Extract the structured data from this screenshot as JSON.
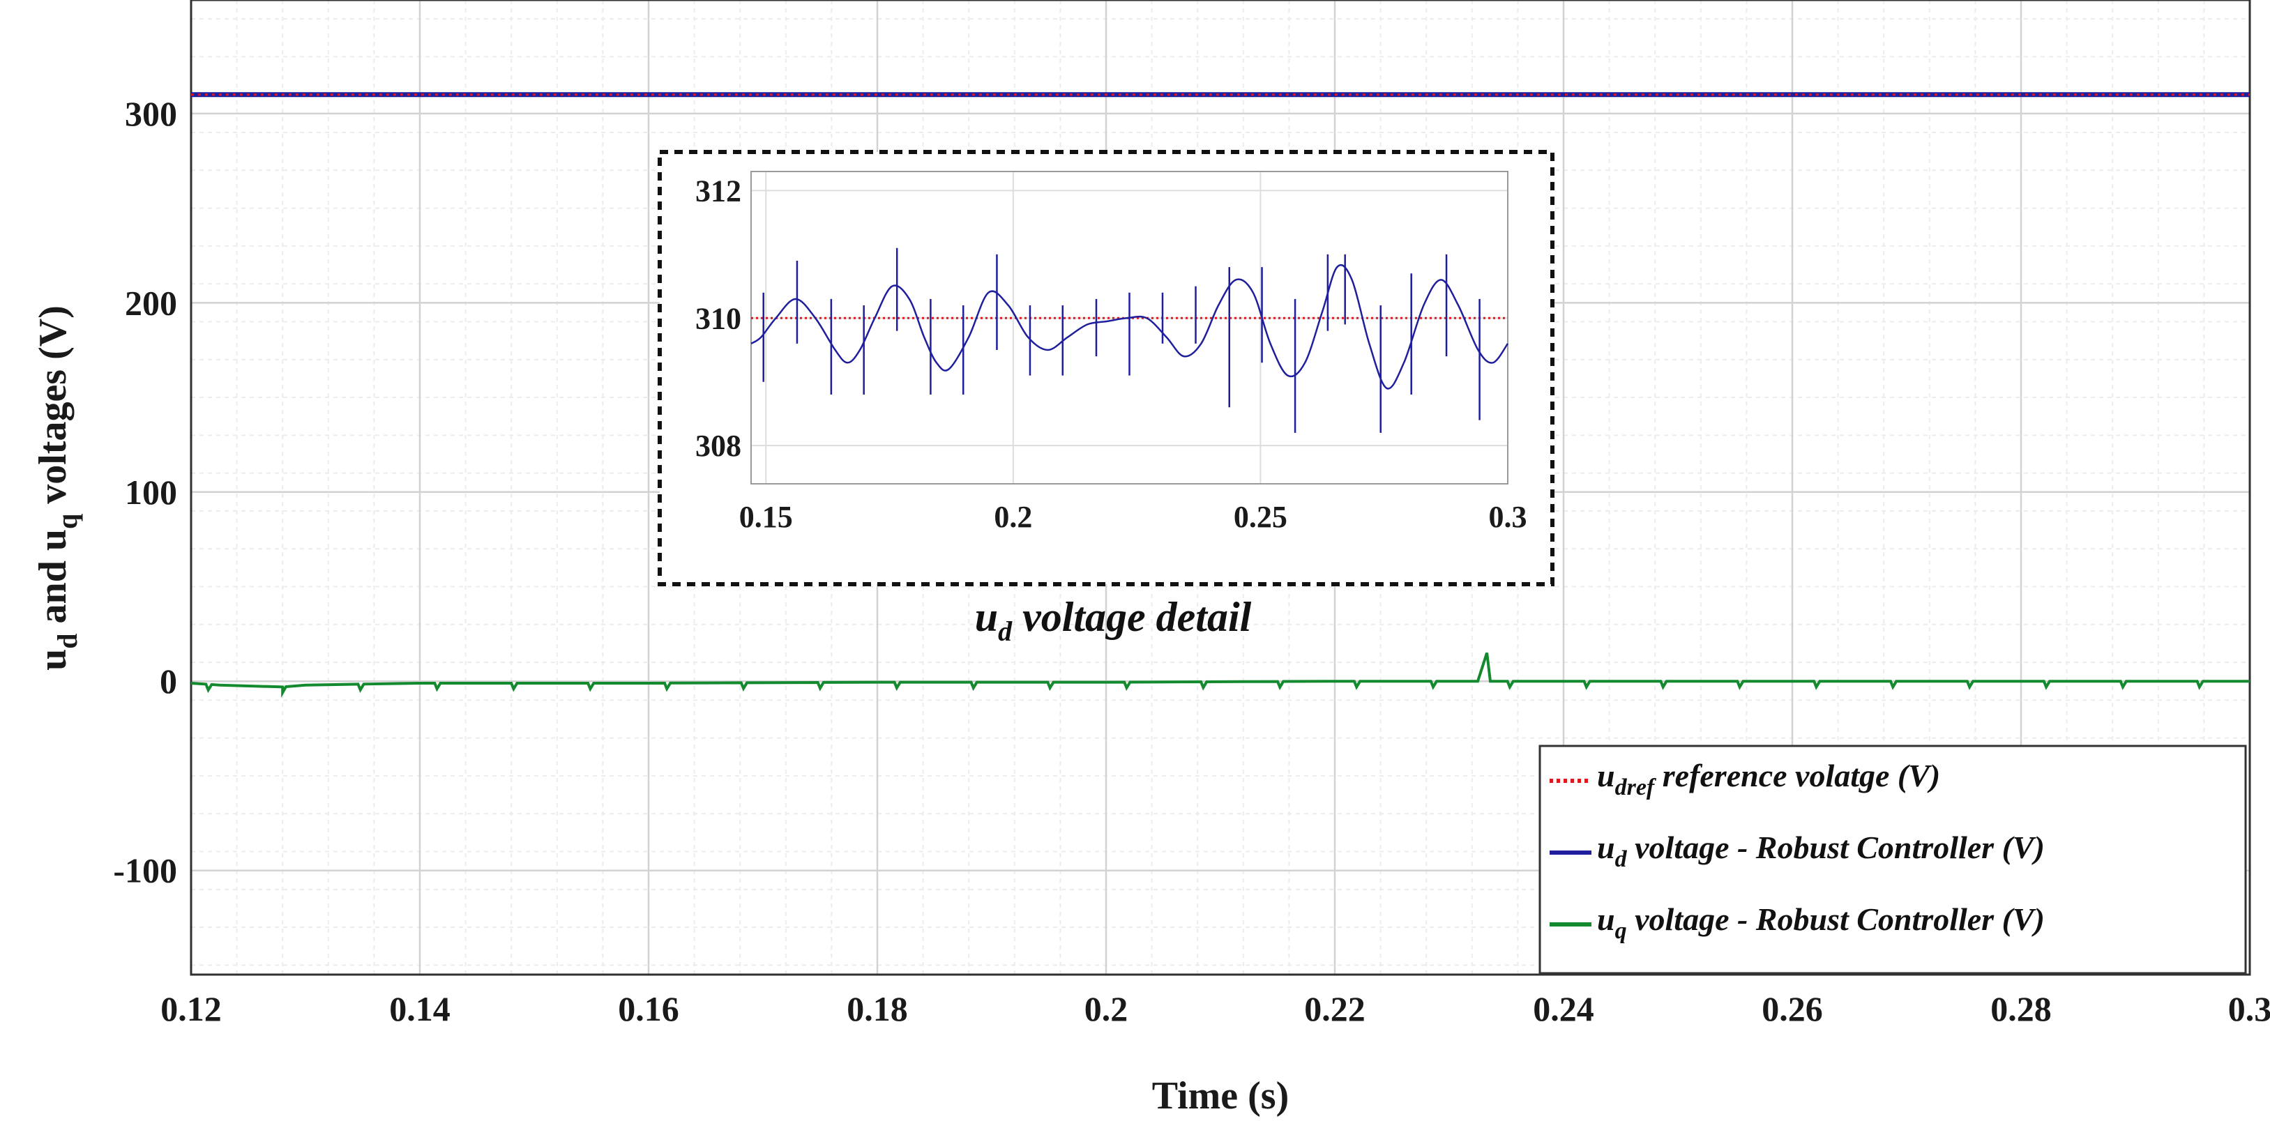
{
  "chart_data": {
    "type": "line",
    "title": "",
    "xlabel": "Time (s)",
    "ylabel": "and voltages (V)",
    "ylabel_parts": [
      "u",
      "d",
      " and u",
      "q",
      " voltages (V)"
    ],
    "xlim": [
      0.12,
      0.3
    ],
    "ylim": [
      -155,
      360
    ],
    "x_ticks": [
      0.12,
      0.14,
      0.16,
      0.18,
      0.2,
      0.22,
      0.24,
      0.26,
      0.28,
      0.3
    ],
    "x_tick_labels": [
      "0.12",
      "0.14",
      "0.16",
      "0.18",
      "0.2",
      "0.22",
      "0.24",
      "0.26",
      "0.28",
      "0.3"
    ],
    "y_ticks": [
      -100,
      0,
      100,
      200,
      300
    ],
    "y_tick_labels": [
      "-100",
      "0",
      "100",
      "200",
      "300"
    ],
    "grid": true,
    "legend_position": "bottom-right",
    "series": [
      {
        "name": "u_dref reference volatge (V)",
        "color": "#e0181b",
        "style": "dotted",
        "x": [
          0.12,
          0.3
        ],
        "values": [
          310,
          310
        ]
      },
      {
        "name": "u_d voltage - Robust Controller (V)",
        "color": "#1f1f9e",
        "style": "solid",
        "x": [
          0.12,
          0.3
        ],
        "values": [
          310,
          310
        ]
      },
      {
        "name": "u_q voltage - Robust Controller (V)",
        "color": "#138a2e",
        "style": "solid",
        "x": [
          0.12,
          0.1225,
          0.128,
          0.13,
          0.14,
          0.16,
          0.18,
          0.2,
          0.22,
          0.2325,
          0.2333,
          0.2336,
          0.24,
          0.26,
          0.28,
          0.3
        ],
        "values": [
          -1,
          -2,
          -3,
          -2,
          -1,
          -1,
          -0.5,
          -0.5,
          0,
          0,
          15,
          0,
          0,
          0,
          0,
          0
        ],
        "dip_times": [
          0.1215,
          0.128,
          0.1348,
          0.1415,
          0.1482,
          0.1549,
          0.1616,
          0.1683,
          0.175,
          0.1817,
          0.1884,
          0.1951,
          0.2018,
          0.2085,
          0.2152,
          0.2219,
          0.2286,
          0.2353,
          0.242,
          0.2487,
          0.2554,
          0.2621,
          0.2688,
          0.2755,
          0.2822,
          0.2889,
          0.2956
        ],
        "dip_depth": 3
      }
    ],
    "legend": [
      {
        "pre": "u",
        "sub": "dref",
        "post": " reference volatge (V)",
        "color": "#e0181b",
        "style": "dotted"
      },
      {
        "pre": "u",
        "sub": "d",
        "post": " voltage - Robust Controller (V)",
        "color": "#1f1f9e",
        "style": "solid"
      },
      {
        "pre": "u",
        "sub": "q",
        "post": " voltage - Robust Controller (V)",
        "color": "#138a2e",
        "style": "solid"
      }
    ],
    "inset": {
      "title_pre": "u",
      "title_sub": "d",
      "title_post": " voltage detail",
      "xlim": [
        0.147,
        0.3
      ],
      "ylim": [
        307.4,
        312.3
      ],
      "x_ticks": [
        0.15,
        0.2,
        0.25,
        0.3
      ],
      "x_tick_labels": [
        "0.15",
        "0.2",
        "0.25",
        "0.3"
      ],
      "y_ticks": [
        308,
        310,
        312
      ],
      "y_tick_labels": [
        "308",
        "310",
        "312"
      ],
      "reference": {
        "value": 310,
        "color": "#e0181b"
      },
      "ud": {
        "color": "#1f1f9e",
        "x": [
          0.147,
          0.149,
          0.152,
          0.156,
          0.16,
          0.164,
          0.1665,
          0.169,
          0.172,
          0.1755,
          0.179,
          0.182,
          0.1845,
          0.187,
          0.191,
          0.195,
          0.199,
          0.203,
          0.207,
          0.211,
          0.215,
          0.219,
          0.223,
          0.227,
          0.231,
          0.2345,
          0.238,
          0.2415,
          0.245,
          0.2485,
          0.252,
          0.2555,
          0.259,
          0.2625,
          0.2655,
          0.2685,
          0.272,
          0.2755,
          0.279,
          0.283,
          0.2865,
          0.29,
          0.294,
          0.297,
          0.3
        ],
        "values": [
          309.6,
          309.7,
          310.0,
          310.3,
          310.0,
          309.5,
          309.3,
          309.5,
          310.0,
          310.5,
          310.3,
          309.7,
          309.3,
          309.2,
          309.7,
          310.4,
          310.2,
          309.7,
          309.5,
          309.7,
          309.9,
          309.95,
          310.0,
          310.0,
          309.7,
          309.4,
          309.6,
          310.2,
          310.6,
          310.4,
          309.6,
          309.1,
          309.3,
          310.1,
          310.8,
          310.6,
          309.6,
          308.9,
          309.3,
          310.2,
          310.6,
          310.2,
          309.5,
          309.3,
          309.6
        ],
        "spikes": [
          [
            0.1495,
            310.4,
            309.0
          ],
          [
            0.1563,
            310.9,
            309.6
          ],
          [
            0.1632,
            310.3,
            308.8
          ],
          [
            0.1698,
            310.2,
            308.8
          ],
          [
            0.1765,
            311.1,
            309.8
          ],
          [
            0.1833,
            310.3,
            308.8
          ],
          [
            0.1899,
            310.2,
            308.8
          ],
          [
            0.1967,
            311.0,
            309.5
          ],
          [
            0.2034,
            310.2,
            309.1
          ],
          [
            0.21,
            310.2,
            309.1
          ],
          [
            0.2168,
            310.3,
            309.4
          ],
          [
            0.2235,
            310.4,
            309.1
          ],
          [
            0.2302,
            310.4,
            309.6
          ],
          [
            0.2369,
            310.5,
            309.6
          ],
          [
            0.2437,
            310.8,
            308.6
          ],
          [
            0.2503,
            310.8,
            309.3
          ],
          [
            0.257,
            310.3,
            308.2
          ],
          [
            0.2636,
            311.0,
            309.8
          ],
          [
            0.2671,
            311.0,
            309.9
          ],
          [
            0.2743,
            310.2,
            308.2
          ],
          [
            0.2805,
            310.7,
            308.8
          ],
          [
            0.2876,
            311.0,
            309.4
          ],
          [
            0.2943,
            310.3,
            308.4
          ]
        ]
      }
    }
  }
}
